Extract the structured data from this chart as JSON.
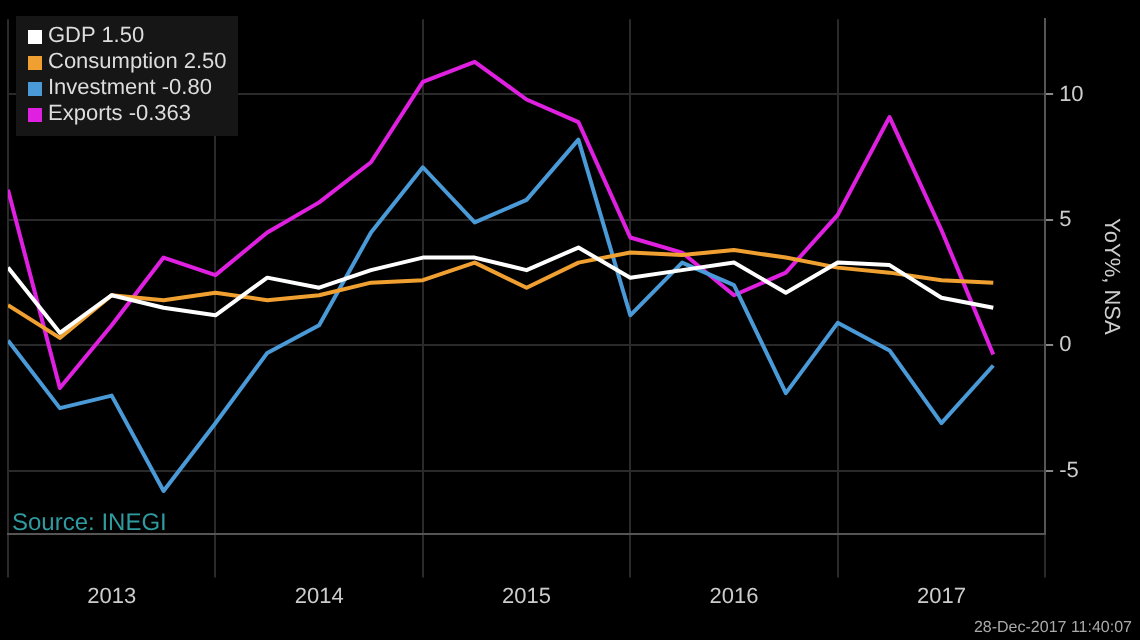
{
  "chart_data": {
    "type": "line",
    "x": [
      2013,
      2013.25,
      2013.5,
      2013.75,
      2014,
      2014.25,
      2014.5,
      2014.75,
      2015,
      2015.25,
      2015.5,
      2015.75,
      2016,
      2016.25,
      2016.5,
      2016.75,
      2017,
      2017.25,
      2017.5,
      2017.75
    ],
    "xlim": [
      2013,
      2018
    ],
    "xticks": [
      {
        "value": 2013,
        "label": null
      },
      {
        "value": 2013.5,
        "label": "2013"
      },
      {
        "value": 2014,
        "label": null
      },
      {
        "value": 2014.5,
        "label": "2014"
      },
      {
        "value": 2015,
        "label": null
      },
      {
        "value": 2015.5,
        "label": "2015"
      },
      {
        "value": 2016,
        "label": null
      },
      {
        "value": 2016.5,
        "label": "2016"
      },
      {
        "value": 2017,
        "label": null
      },
      {
        "value": 2017.5,
        "label": "2017"
      },
      {
        "value": 2018,
        "label": null
      }
    ],
    "ylim": [
      -7.5,
      13
    ],
    "yticks": [
      -5,
      0,
      5,
      10
    ],
    "ylabel": "YoY%, NSA",
    "grid": true,
    "legend": "top left",
    "marker": "none",
    "line_style": "solid",
    "series": [
      {
        "name": "GDP 1.50",
        "color": "#ffffff",
        "values": [
          3.1,
          0.5,
          2.0,
          1.5,
          1.2,
          2.7,
          2.3,
          3.0,
          3.5,
          3.5,
          3.0,
          3.9,
          2.7,
          3.0,
          3.3,
          2.1,
          3.3,
          3.2,
          1.9,
          1.5
        ]
      },
      {
        "name": "Consumption 2.50",
        "color": "#f0a030",
        "values": [
          1.6,
          0.3,
          2.0,
          1.8,
          2.1,
          1.8,
          2.0,
          2.5,
          2.6,
          3.3,
          2.3,
          3.3,
          3.7,
          3.6,
          3.8,
          3.5,
          3.1,
          2.9,
          2.6,
          2.5
        ]
      },
      {
        "name": "Investment -0.80",
        "color": "#4a9ad8",
        "values": [
          0.2,
          -2.5,
          -2.0,
          -5.8,
          -3.1,
          -0.3,
          0.8,
          4.5,
          7.1,
          4.9,
          5.8,
          8.2,
          1.2,
          3.3,
          2.4,
          -1.9,
          0.9,
          -0.2,
          -3.1,
          -0.8
        ]
      },
      {
        "name": "Exports -0.363",
        "color": "#e020e0",
        "values": [
          6.2,
          -1.7,
          0.8,
          3.5,
          2.8,
          4.5,
          5.7,
          7.3,
          10.5,
          11.3,
          9.8,
          8.9,
          4.3,
          3.7,
          2.0,
          2.9,
          5.2,
          9.1,
          4.6,
          -0.36
        ]
      }
    ],
    "annotations": [
      "Source: INEGI",
      "28-Dec-2017 11:40:07"
    ]
  }
}
